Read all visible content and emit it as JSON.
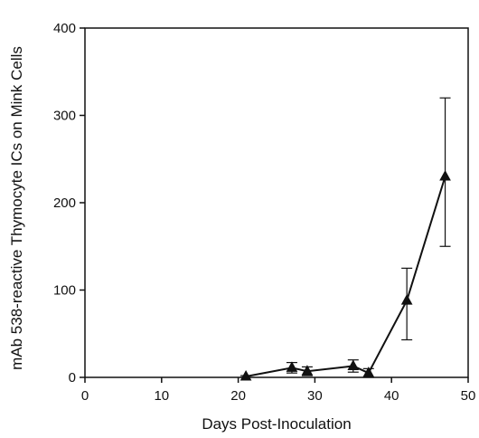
{
  "chart_data": {
    "type": "line",
    "title": "",
    "xlabel": "Days Post-Inoculation",
    "ylabel": "mAb 538-reactive Thymocyte ICs on Mink Cells",
    "xlim": [
      0,
      50
    ],
    "ylim": [
      0,
      400
    ],
    "xticks": [
      0,
      10,
      20,
      30,
      40,
      50
    ],
    "yticks": [
      0,
      100,
      200,
      300,
      400
    ],
    "grid": false,
    "legend": "none",
    "marker": "triangle",
    "series": [
      {
        "x": [
          21,
          27,
          29,
          35,
          37,
          42,
          47
        ],
        "y": [
          1,
          11,
          7,
          13,
          5,
          88,
          230
        ],
        "err_low": [
          1,
          6,
          5,
          7,
          5,
          45,
          80
        ],
        "err_high": [
          1,
          6,
          5,
          7,
          5,
          37,
          90
        ]
      }
    ],
    "colors": {
      "line": "#111111",
      "axis": "#111111"
    }
  }
}
